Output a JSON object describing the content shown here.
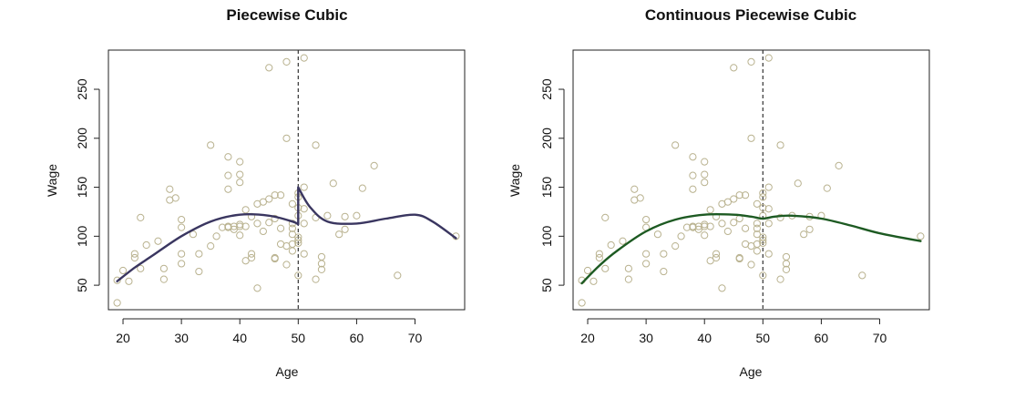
{
  "colors": {
    "background": "#ffffff",
    "frame": "#222222",
    "points": "#b9b28f",
    "piecewise_curve": "#3a3660",
    "continuous_curve": "#1d5a22",
    "knot_line": "#333333"
  },
  "chart_data": [
    {
      "type": "scatter",
      "title": "Piecewise Cubic",
      "xlabel": "Age",
      "ylabel": "Wage",
      "xlim": [
        17.5,
        78.5
      ],
      "ylim": [
        25,
        290
      ],
      "xticks": [
        20,
        30,
        40,
        50,
        60,
        70
      ],
      "yticks": [
        50,
        100,
        150,
        200,
        250
      ],
      "grid": false,
      "knot": 50,
      "points": {
        "x": [
          19,
          19,
          20,
          21,
          22,
          22,
          23,
          23,
          24,
          26,
          27,
          27,
          28,
          28,
          29,
          30,
          30,
          30,
          30,
          32,
          33,
          33,
          35,
          35,
          36,
          37,
          38,
          38,
          38,
          38,
          38,
          39,
          39,
          40,
          40,
          40,
          40,
          40,
          40,
          41,
          41,
          41,
          42,
          42,
          42,
          43,
          43,
          43,
          44,
          44,
          45,
          45,
          45,
          46,
          46,
          46,
          46,
          47,
          47,
          47,
          48,
          48,
          48,
          48,
          49,
          49,
          49,
          49,
          49,
          49,
          50,
          50,
          50,
          50,
          50,
          50,
          50,
          50,
          51,
          51,
          51,
          51,
          51,
          53,
          53,
          53,
          54,
          54,
          54,
          55,
          56,
          57,
          58,
          58,
          60,
          61,
          63,
          67,
          77
        ],
        "y": [
          32,
          55,
          65,
          54,
          78,
          82,
          67,
          119,
          91,
          95,
          67,
          56,
          137,
          148,
          139,
          82,
          117,
          109,
          72,
          102,
          82,
          64,
          193,
          90,
          100,
          109,
          181,
          109,
          148,
          162,
          110,
          110,
          107,
          176,
          163,
          155,
          112,
          110,
          101,
          127,
          110,
          75,
          120,
          82,
          78,
          113,
          133,
          47,
          105,
          135,
          138,
          272,
          114,
          142,
          78,
          77,
          118,
          142,
          108,
          92,
          278,
          200,
          90,
          71,
          92,
          133,
          102,
          85,
          108,
          113,
          129,
          140,
          99,
          144,
          121,
          96,
          60,
          93,
          282,
          113,
          150,
          128,
          82,
          193,
          56,
          119,
          79,
          66,
          72,
          121,
          154,
          102,
          120,
          107,
          121,
          149,
          172,
          60,
          100
        ]
      },
      "curve": {
        "x": [
          19,
          22,
          25,
          30,
          35,
          40,
          45,
          49,
          50,
          50,
          52,
          55,
          60,
          65,
          70,
          73,
          77
        ],
        "y": [
          54,
          68,
          80,
          100,
          115,
          122,
          121,
          115,
          112,
          150,
          130,
          115,
          113,
          118,
          122,
          115,
          98
        ]
      }
    },
    {
      "type": "scatter",
      "title": "Continuous Piecewise Cubic",
      "xlabel": "Age",
      "ylabel": "Wage",
      "xlim": [
        17.5,
        78.5
      ],
      "ylim": [
        25,
        290
      ],
      "xticks": [
        20,
        30,
        40,
        50,
        60,
        70
      ],
      "yticks": [
        50,
        100,
        150,
        200,
        250
      ],
      "grid": false,
      "knot": 50,
      "points": {
        "x": [
          19,
          19,
          20,
          21,
          22,
          22,
          23,
          23,
          24,
          26,
          27,
          27,
          28,
          28,
          29,
          30,
          30,
          30,
          30,
          32,
          33,
          33,
          35,
          35,
          36,
          37,
          38,
          38,
          38,
          38,
          38,
          39,
          39,
          40,
          40,
          40,
          40,
          40,
          40,
          41,
          41,
          41,
          42,
          42,
          42,
          43,
          43,
          43,
          44,
          44,
          45,
          45,
          45,
          46,
          46,
          46,
          46,
          47,
          47,
          47,
          48,
          48,
          48,
          48,
          49,
          49,
          49,
          49,
          49,
          49,
          50,
          50,
          50,
          50,
          50,
          50,
          50,
          50,
          51,
          51,
          51,
          51,
          51,
          53,
          53,
          53,
          54,
          54,
          54,
          55,
          56,
          57,
          58,
          58,
          60,
          61,
          63,
          67,
          77
        ],
        "y": [
          32,
          55,
          65,
          54,
          78,
          82,
          67,
          119,
          91,
          95,
          67,
          56,
          137,
          148,
          139,
          82,
          117,
          109,
          72,
          102,
          82,
          64,
          193,
          90,
          100,
          109,
          181,
          109,
          148,
          162,
          110,
          110,
          107,
          176,
          163,
          155,
          112,
          110,
          101,
          127,
          110,
          75,
          120,
          82,
          78,
          113,
          133,
          47,
          105,
          135,
          138,
          272,
          114,
          142,
          78,
          77,
          118,
          142,
          108,
          92,
          278,
          200,
          90,
          71,
          92,
          133,
          102,
          85,
          108,
          113,
          129,
          140,
          99,
          144,
          121,
          96,
          60,
          93,
          282,
          113,
          150,
          128,
          82,
          193,
          56,
          119,
          79,
          66,
          72,
          121,
          154,
          102,
          120,
          107,
          121,
          149,
          172,
          60,
          100
        ]
      },
      "curve": {
        "x": [
          19,
          22,
          25,
          30,
          35,
          40,
          45,
          48,
          50,
          52,
          55,
          60,
          65,
          70,
          77
        ],
        "y": [
          52,
          70,
          85,
          105,
          117,
          122,
          122,
          120,
          118,
          120,
          121,
          118,
          111,
          103,
          95
        ]
      }
    }
  ]
}
